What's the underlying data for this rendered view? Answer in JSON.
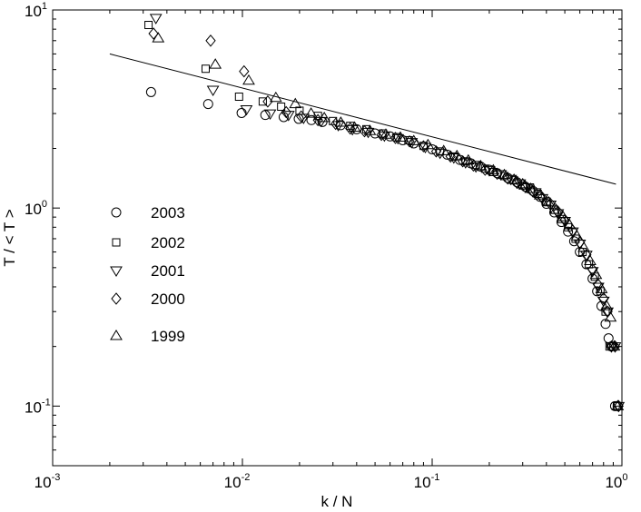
{
  "chart_data": {
    "type": "scatter",
    "title": "",
    "xlabel": "k / N",
    "ylabel": "T / < T >",
    "xscale": "log",
    "yscale": "log",
    "xlim": [
      0.001,
      1
    ],
    "ylim": [
      0.05,
      10
    ],
    "x_ticks": [
      {
        "value": 0.001,
        "base": "10",
        "exp": "-3"
      },
      {
        "value": 0.01,
        "base": "10",
        "exp": "-2"
      },
      {
        "value": 0.1,
        "base": "10",
        "exp": "-1"
      },
      {
        "value": 1,
        "base": "10",
        "exp": "0"
      }
    ],
    "y_ticks": [
      {
        "value": 0.1,
        "base": "10",
        "exp": "-1"
      },
      {
        "value": 1,
        "base": "10",
        "exp": "0"
      },
      {
        "value": 10,
        "base": "10",
        "exp": "1"
      }
    ],
    "grid": false,
    "legend_position": "left",
    "fit_line": {
      "x": [
        0.002,
        0.93
      ],
      "y": [
        6.0,
        1.32
      ]
    },
    "series": [
      {
        "name": "2003",
        "marker": "circle",
        "x": [
          0.0033,
          0.0066,
          0.0099,
          0.0132,
          0.0165,
          0.0198,
          0.0231,
          0.0264,
          0.033,
          0.04,
          0.05,
          0.06,
          0.07,
          0.08,
          0.1,
          0.12,
          0.14,
          0.16,
          0.18,
          0.2,
          0.22,
          0.25,
          0.28,
          0.31,
          0.34,
          0.37,
          0.4,
          0.44,
          0.48,
          0.52,
          0.56,
          0.6,
          0.65,
          0.7,
          0.74,
          0.78,
          0.82,
          0.85,
          0.88,
          0.92,
          0.95
        ],
        "y": [
          3.85,
          3.35,
          3.02,
          2.95,
          2.88,
          2.82,
          2.78,
          2.72,
          2.62,
          2.5,
          2.38,
          2.3,
          2.2,
          2.12,
          1.98,
          1.86,
          1.75,
          1.68,
          1.62,
          1.56,
          1.5,
          1.42,
          1.35,
          1.28,
          1.22,
          1.14,
          1.05,
          0.95,
          0.85,
          0.76,
          0.68,
          0.6,
          0.52,
          0.44,
          0.38,
          0.32,
          0.26,
          0.22,
          0.2,
          0.1,
          0.1
        ]
      },
      {
        "name": "2002",
        "marker": "square",
        "x": [
          0.0032,
          0.0064,
          0.0096,
          0.0128,
          0.016,
          0.02,
          0.025,
          0.03,
          0.037,
          0.045,
          0.055,
          0.065,
          0.075,
          0.09,
          0.11,
          0.13,
          0.15,
          0.17,
          0.19,
          0.21,
          0.24,
          0.27,
          0.3,
          0.33,
          0.36,
          0.4,
          0.44,
          0.48,
          0.52,
          0.57,
          0.62,
          0.67,
          0.72,
          0.77,
          0.82,
          0.86,
          0.9,
          0.94
        ],
        "y": [
          8.4,
          5.05,
          3.65,
          3.45,
          3.25,
          3.1,
          2.92,
          2.75,
          2.6,
          2.5,
          2.38,
          2.28,
          2.2,
          2.06,
          1.93,
          1.82,
          1.72,
          1.65,
          1.58,
          1.52,
          1.45,
          1.38,
          1.3,
          1.25,
          1.18,
          1.08,
          0.98,
          0.88,
          0.8,
          0.7,
          0.6,
          0.52,
          0.45,
          0.38,
          0.3,
          0.2,
          0.2,
          0.1
        ]
      },
      {
        "name": "2001",
        "marker": "triangle-down",
        "x": [
          0.0035,
          0.007,
          0.0105,
          0.014,
          0.0175,
          0.021,
          0.026,
          0.032,
          0.038,
          0.046,
          0.056,
          0.066,
          0.078,
          0.092,
          0.11,
          0.13,
          0.15,
          0.17,
          0.2,
          0.23,
          0.26,
          0.29,
          0.32,
          0.35,
          0.38,
          0.42,
          0.46,
          0.5,
          0.55,
          0.6,
          0.65,
          0.7,
          0.75,
          0.8,
          0.84,
          0.88,
          0.92,
          0.96
        ],
        "y": [
          9.1,
          3.95,
          3.15,
          3.0,
          2.95,
          2.85,
          2.75,
          2.62,
          2.5,
          2.42,
          2.32,
          2.25,
          2.15,
          2.03,
          1.9,
          1.8,
          1.7,
          1.62,
          1.55,
          1.48,
          1.4,
          1.33,
          1.27,
          1.2,
          1.12,
          1.04,
          0.94,
          0.86,
          0.76,
          0.66,
          0.58,
          0.48,
          0.4,
          0.34,
          0.3,
          0.2,
          0.2,
          0.1
        ]
      },
      {
        "name": "2000",
        "marker": "diamond",
        "x": [
          0.0034,
          0.0068,
          0.0102,
          0.0136,
          0.017,
          0.0204,
          0.025,
          0.031,
          0.037,
          0.044,
          0.054,
          0.064,
          0.076,
          0.09,
          0.105,
          0.125,
          0.145,
          0.165,
          0.19,
          0.22,
          0.25,
          0.28,
          0.31,
          0.34,
          0.38,
          0.42,
          0.46,
          0.5,
          0.55,
          0.6,
          0.65,
          0.7,
          0.75,
          0.8,
          0.84,
          0.88,
          0.92,
          0.96
        ],
        "y": [
          7.6,
          7.0,
          4.9,
          3.45,
          3.05,
          2.9,
          2.78,
          2.66,
          2.52,
          2.44,
          2.34,
          2.26,
          2.17,
          2.05,
          1.93,
          1.82,
          1.72,
          1.64,
          1.56,
          1.49,
          1.41,
          1.34,
          1.28,
          1.21,
          1.13,
          1.05,
          0.96,
          0.87,
          0.77,
          0.67,
          0.58,
          0.49,
          0.41,
          0.35,
          0.3,
          0.2,
          0.2,
          0.1
        ]
      },
      {
        "name": "1999",
        "marker": "triangle-up",
        "x": [
          0.0036,
          0.0072,
          0.0108,
          0.015,
          0.019,
          0.023,
          0.027,
          0.033,
          0.039,
          0.047,
          0.057,
          0.068,
          0.08,
          0.095,
          0.115,
          0.135,
          0.155,
          0.18,
          0.21,
          0.24,
          0.27,
          0.3,
          0.33,
          0.37,
          0.41,
          0.45,
          0.49,
          0.53,
          0.58,
          0.63,
          0.68,
          0.73,
          0.78,
          0.83,
          0.87,
          0.91,
          0.95
        ],
        "y": [
          7.2,
          5.3,
          4.4,
          3.6,
          3.35,
          3.0,
          2.85,
          2.7,
          2.55,
          2.45,
          2.35,
          2.27,
          2.18,
          2.08,
          1.94,
          1.83,
          1.74,
          1.63,
          1.55,
          1.47,
          1.39,
          1.32,
          1.25,
          1.16,
          1.07,
          0.98,
          0.9,
          0.82,
          0.72,
          0.63,
          0.54,
          0.46,
          0.39,
          0.32,
          0.28,
          0.2,
          0.1
        ]
      }
    ]
  }
}
